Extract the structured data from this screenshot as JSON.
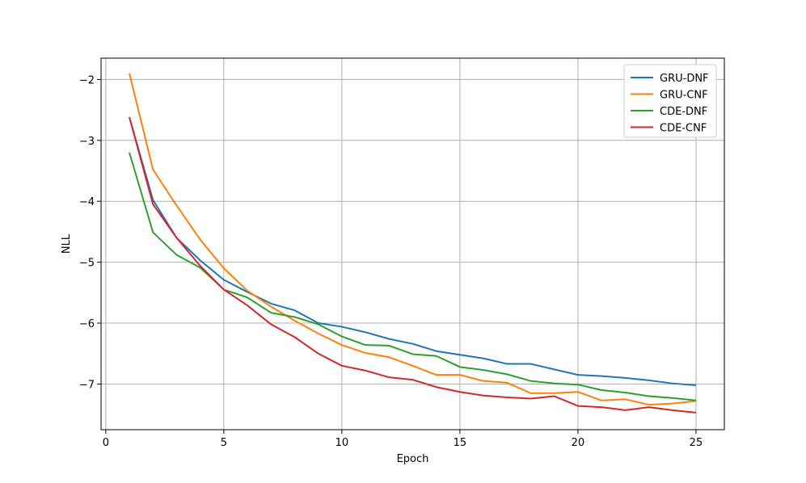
{
  "chart_data": {
    "type": "line",
    "xlabel": "Epoch",
    "ylabel": "NLL",
    "xlim": [
      -0.2,
      26.2
    ],
    "ylim": [
      -7.75,
      -1.65
    ],
    "xticks": [
      0,
      5,
      10,
      15,
      20,
      25
    ],
    "yticks": [
      -2,
      -3,
      -4,
      -5,
      -6,
      -7
    ],
    "grid": true,
    "legend_position": "top-right",
    "x": [
      1,
      2,
      3,
      4,
      5,
      6,
      7,
      8,
      9,
      10,
      11,
      12,
      13,
      14,
      15,
      16,
      17,
      18,
      19,
      20,
      21,
      22,
      23,
      24,
      25
    ],
    "series": [
      {
        "name": "GRU-DNF",
        "color": "#1f77b4",
        "values": [
          -2.62,
          -3.98,
          -4.6,
          -4.97,
          -5.29,
          -5.49,
          -5.68,
          -5.79,
          -6.0,
          -6.06,
          -6.15,
          -6.26,
          -6.34,
          -6.46,
          -6.52,
          -6.58,
          -6.67,
          -6.67,
          -6.76,
          -6.85,
          -6.87,
          -6.9,
          -6.94,
          -6.99,
          -7.02
        ]
      },
      {
        "name": "GRU-CNF",
        "color": "#ff7f0e",
        "values": [
          -1.9,
          -3.48,
          -4.07,
          -4.63,
          -5.1,
          -5.47,
          -5.73,
          -5.96,
          -6.17,
          -6.36,
          -6.49,
          -6.56,
          -6.7,
          -6.85,
          -6.85,
          -6.95,
          -6.98,
          -7.15,
          -7.15,
          -7.13,
          -7.27,
          -7.25,
          -7.34,
          -7.32,
          -7.28
        ]
      },
      {
        "name": "CDE-DNF",
        "color": "#2ca02c",
        "values": [
          -3.2,
          -4.51,
          -4.88,
          -5.09,
          -5.45,
          -5.58,
          -5.83,
          -5.9,
          -6.02,
          -6.22,
          -6.36,
          -6.37,
          -6.51,
          -6.54,
          -6.72,
          -6.77,
          -6.84,
          -6.95,
          -6.99,
          -7.01,
          -7.1,
          -7.14,
          -7.2,
          -7.23,
          -7.27
        ]
      },
      {
        "name": "CDE-CNF",
        "color": "#d62728",
        "values": [
          -2.62,
          -4.05,
          -4.6,
          -5.06,
          -5.45,
          -5.71,
          -6.02,
          -6.23,
          -6.5,
          -6.7,
          -6.78,
          -6.89,
          -6.93,
          -7.05,
          -7.13,
          -7.19,
          -7.22,
          -7.24,
          -7.2,
          -7.36,
          -7.38,
          -7.43,
          -7.38,
          -7.43,
          -7.47
        ]
      }
    ]
  }
}
